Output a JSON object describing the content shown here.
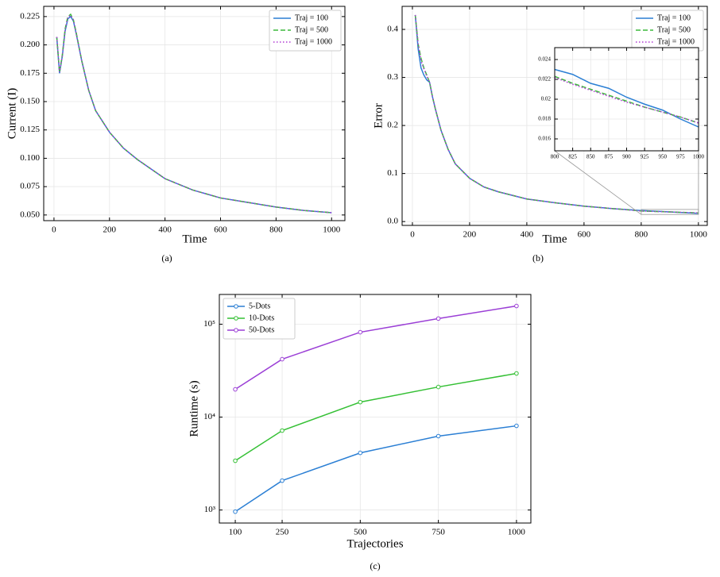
{
  "chart_data": [
    {
      "type": "line",
      "caption": "(a)",
      "xlabel": "Time",
      "ylabel": "Current (I)",
      "x": [
        10,
        20,
        30,
        40,
        50,
        60,
        70,
        80,
        100,
        125,
        150,
        200,
        250,
        300,
        400,
        500,
        600,
        700,
        800,
        900,
        1000
      ],
      "series": [
        {
          "name": "Traj = 100",
          "color": "#2b7fd4",
          "dash": "solid",
          "values": [
            0.207,
            0.175,
            0.19,
            0.212,
            0.223,
            0.225,
            0.221,
            0.21,
            0.186,
            0.16,
            0.142,
            0.123,
            0.109,
            0.099,
            0.082,
            0.072,
            0.065,
            0.061,
            0.057,
            0.054,
            0.052
          ]
        },
        {
          "name": "Traj = 500",
          "color": "#3cb83c",
          "dash": "dashed",
          "values": [
            0.207,
            0.176,
            0.191,
            0.214,
            0.225,
            0.227,
            0.222,
            0.211,
            0.186,
            0.16,
            0.142,
            0.123,
            0.109,
            0.099,
            0.082,
            0.072,
            0.065,
            0.061,
            0.057,
            0.054,
            0.052
          ]
        },
        {
          "name": "Traj = 1000",
          "color": "#b03ad4",
          "dash": "dotted",
          "values": [
            0.207,
            0.176,
            0.19,
            0.213,
            0.224,
            0.226,
            0.222,
            0.21,
            0.186,
            0.16,
            0.142,
            0.123,
            0.109,
            0.099,
            0.082,
            0.072,
            0.065,
            0.061,
            0.057,
            0.054,
            0.052
          ]
        }
      ],
      "xlim": [
        -37,
        1048
      ],
      "ylim": [
        0.045,
        0.234
      ],
      "xticks": [
        0,
        200,
        400,
        600,
        800,
        1000
      ],
      "yticks": [
        {
          "value": 0.05,
          "label": "0.050"
        },
        0.075,
        {
          "value": 0.1,
          "label": "0.100"
        },
        0.125,
        {
          "value": 0.15,
          "label": "0.150"
        },
        0.175,
        {
          "value": 0.2,
          "label": "0.200"
        },
        0.225
      ],
      "grid": true,
      "legend": "upper right"
    },
    {
      "type": "line",
      "caption": "(b)",
      "xlabel": "Time",
      "ylabel": "Error",
      "x": [
        10,
        20,
        30,
        40,
        50,
        60,
        70,
        80,
        100,
        125,
        150,
        200,
        250,
        300,
        400,
        500,
        600,
        700,
        800,
        900,
        1000
      ],
      "series": [
        {
          "name": "Traj = 100",
          "color": "#2b7fd4",
          "dash": "solid",
          "values": [
            0.43,
            0.36,
            0.32,
            0.305,
            0.295,
            0.29,
            0.26,
            0.235,
            0.19,
            0.15,
            0.12,
            0.09,
            0.072,
            0.062,
            0.047,
            0.039,
            0.032,
            0.027,
            0.023,
            0.02,
            0.017
          ]
        },
        {
          "name": "Traj = 500",
          "color": "#3cb83c",
          "dash": "dashed",
          "values": [
            0.43,
            0.37,
            0.34,
            0.32,
            0.305,
            0.29,
            0.26,
            0.235,
            0.19,
            0.15,
            0.12,
            0.09,
            0.072,
            0.062,
            0.047,
            0.039,
            0.032,
            0.027,
            0.022,
            0.02,
            0.018
          ]
        },
        {
          "name": "Traj = 1000",
          "color": "#b03ad4",
          "dash": "dotted",
          "values": [
            0.43,
            0.37,
            0.335,
            0.318,
            0.303,
            0.29,
            0.26,
            0.235,
            0.19,
            0.15,
            0.12,
            0.09,
            0.072,
            0.062,
            0.047,
            0.039,
            0.032,
            0.027,
            0.022,
            0.02,
            0.018
          ]
        }
      ],
      "xlim": [
        -36,
        1031
      ],
      "ylim": [
        -0.008,
        0.448
      ],
      "xticks": [
        0,
        200,
        400,
        600,
        800,
        1000
      ],
      "yticks": [
        {
          "value": 0,
          "label": "0.0"
        },
        0.1,
        0.2,
        0.3,
        0.4
      ],
      "grid": true,
      "legend": "upper right",
      "inset": {
        "x": [
          800,
          825,
          850,
          875,
          900,
          925,
          950,
          975,
          1000
        ],
        "series": [
          {
            "color": "#2b7fd4",
            "dash": "solid",
            "values": [
              0.023,
              0.0225,
              0.0216,
              0.0211,
              0.0202,
              0.0195,
              0.0189,
              0.018,
              0.0172
            ]
          },
          {
            "color": "#3cb83c",
            "dash": "dashed",
            "values": [
              0.0223,
              0.0216,
              0.021,
              0.0204,
              0.0198,
              0.0192,
              0.0187,
              0.0182,
              0.0176
            ]
          },
          {
            "color": "#b03ad4",
            "dash": "dotted",
            "values": [
              0.0222,
              0.0215,
              0.0209,
              0.0203,
              0.0197,
              0.0192,
              0.0187,
              0.0182,
              0.0176
            ]
          }
        ],
        "xlim": [
          800,
          1000
        ],
        "ylim": [
          0.0148,
          0.0252
        ],
        "xticks": [
          800,
          825,
          850,
          875,
          900,
          925,
          950,
          975,
          1000
        ],
        "yticks": [
          0.016,
          0.018,
          0.02,
          0.022,
          0.024
        ],
        "grid": true
      }
    },
    {
      "type": "line",
      "caption": "(c)",
      "xlabel": "Trajectories",
      "ylabel": "Runtime (s)",
      "x": [
        100,
        250,
        500,
        750,
        1000
      ],
      "marker": "circle",
      "log_y": true,
      "series": [
        {
          "name": "5-Dots",
          "color": "#2b7fd4",
          "dash": "solid",
          "values": [
            960,
            2070,
            4120,
            6240,
            8050
          ]
        },
        {
          "name": "10-Dots",
          "color": "#35c035",
          "dash": "solid",
          "values": [
            3390,
            7160,
            14500,
            21100,
            29500
          ]
        },
        {
          "name": "50-Dots",
          "color": "#9b3fd6",
          "dash": "solid",
          "values": [
            19900,
            42000,
            82000,
            115000,
            157000
          ]
        }
      ],
      "xlim": [
        49,
        1046
      ],
      "ylim": [
        724,
        209000
      ],
      "xticks": [
        100,
        250,
        500,
        750,
        1000
      ],
      "yticks": [
        {
          "value": 1000,
          "label": "10³"
        },
        {
          "value": 10000,
          "label": "10⁴"
        },
        {
          "value": 100000,
          "label": "10⁵"
        }
      ],
      "grid": true,
      "legend": "upper left"
    }
  ]
}
